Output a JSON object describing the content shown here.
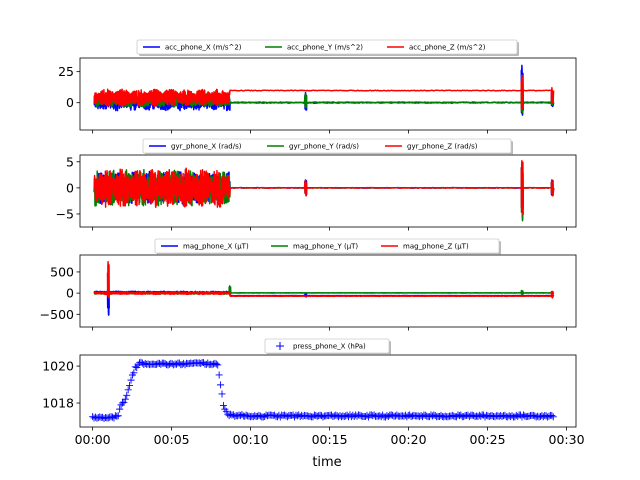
{
  "chart_data": {
    "type": "line",
    "xlabel": "time",
    "x_ticks": [
      "00:00",
      "00:05",
      "00:10",
      "00:15",
      "00:20",
      "00:25",
      "00:30"
    ],
    "x_tick_minutes": [
      0,
      5,
      10,
      15,
      20,
      25,
      30
    ],
    "xlim_minutes": [
      -0.8,
      30.6
    ],
    "legend_position": "top-center, above each panel",
    "grid": false,
    "panels": [
      {
        "id": "acc",
        "ylim": [
          -22,
          36
        ],
        "y_ticks": [
          0,
          25
        ],
        "series": [
          {
            "name": "acc_phone_X (m/s^2)",
            "color": "#0000ff",
            "marker": "line",
            "segments": [
              {
                "x": [
                  0.1,
                  8.7
                ],
                "center": 0,
                "amp": 6.5
              },
              {
                "x": [
                  8.7,
                  29.2
                ],
                "center": 0,
                "amp": 0.3
              }
            ],
            "spikes": [
              {
                "x": 13.5,
                "min": -6,
                "max": 8
              },
              {
                "x": 27.2,
                "min": -10,
                "max": 30
              },
              {
                "x": 29.1,
                "min": -3,
                "max": 8
              }
            ]
          },
          {
            "name": "acc_phone_Y (m/s^2)",
            "color": "#008000",
            "marker": "line",
            "segments": [
              {
                "x": [
                  0.1,
                  8.7
                ],
                "center": 2,
                "amp": 5.5
              },
              {
                "x": [
                  8.7,
                  29.2
                ],
                "center": 0.3,
                "amp": 0.3
              }
            ],
            "spikes": [
              {
                "x": 13.5,
                "min": -4,
                "max": 7
              },
              {
                "x": 27.2,
                "min": -8,
                "max": 22
              },
              {
                "x": 29.1,
                "min": -2,
                "max": 6
              }
            ]
          },
          {
            "name": "acc_phone_Z (m/s^2)",
            "color": "#ff0000",
            "marker": "line",
            "segments": [
              {
                "x": [
                  0.1,
                  8.7
                ],
                "center": 4,
                "amp": 7
              },
              {
                "x": [
                  8.7,
                  29.2
                ],
                "center": 9.8,
                "amp": 0.3
              }
            ],
            "spikes": [
              {
                "x": 27.2,
                "min": -5,
                "max": 22
              },
              {
                "x": 29.1,
                "min": 0,
                "max": 12
              }
            ]
          }
        ]
      },
      {
        "id": "gyr",
        "ylim": [
          -7.5,
          6.3
        ],
        "y_ticks": [
          -5,
          0,
          5
        ],
        "series": [
          {
            "name": "gyr_phone_X (rad/s)",
            "color": "#0000ff",
            "marker": "line",
            "segments": [
              {
                "x": [
                  0.1,
                  8.7
                ],
                "center": 0,
                "amp": 3.2
              },
              {
                "x": [
                  8.7,
                  29.2
                ],
                "center": 0,
                "amp": 0.05
              }
            ],
            "spikes": [
              {
                "x": 13.5,
                "min": -1.5,
                "max": 1.5
              },
              {
                "x": 27.2,
                "min": -4,
                "max": 4
              },
              {
                "x": 29.1,
                "min": -1.5,
                "max": 1.5
              }
            ]
          },
          {
            "name": "gyr_phone_Y (rad/s)",
            "color": "#008000",
            "marker": "line",
            "segments": [
              {
                "x": [
                  0.1,
                  8.7
                ],
                "center": 0,
                "amp": 3.5
              },
              {
                "x": [
                  8.7,
                  29.2
                ],
                "center": 0,
                "amp": 0.05
              }
            ],
            "spikes": [
              {
                "x": 13.5,
                "min": -1,
                "max": 1
              },
              {
                "x": 27.2,
                "min": -6.3,
                "max": 4.5
              },
              {
                "x": 29.1,
                "min": -1,
                "max": 1
              }
            ]
          },
          {
            "name": "gyr_phone_Z (rad/s)",
            "color": "#ff0000",
            "marker": "line",
            "segments": [
              {
                "x": [
                  0.1,
                  8.7
                ],
                "center": 0,
                "amp": 3.8
              },
              {
                "x": [
                  8.7,
                  29.2
                ],
                "center": 0,
                "amp": 0.05
              }
            ],
            "spikes": [
              {
                "x": 13.5,
                "min": -1.5,
                "max": 1.5
              },
              {
                "x": 27.2,
                "min": -5,
                "max": 5.2
              },
              {
                "x": 29.1,
                "min": -1.5,
                "max": 1.5
              }
            ]
          }
        ]
      },
      {
        "id": "mag",
        "ylim": [
          -800,
          900
        ],
        "y_ticks": [
          -500,
          0,
          500
        ],
        "series": [
          {
            "name": "mag_phone_X (µT)",
            "color": "#0000ff",
            "marker": "line",
            "segments": [
              {
                "x": [
                  0.1,
                  8.7
                ],
                "center": 20,
                "amp": 25
              },
              {
                "x": [
                  8.7,
                  29.2
                ],
                "center": -60,
                "amp": 4
              }
            ],
            "spikes": [
              {
                "x": 1.0,
                "min": -520,
                "max": 80
              },
              {
                "x": 13.5,
                "min": -90,
                "max": -30
              }
            ]
          },
          {
            "name": "mag_phone_Y (µT)",
            "color": "#008000",
            "marker": "line",
            "segments": [
              {
                "x": [
                  0.1,
                  8.7
                ],
                "center": 0,
                "amp": 25
              },
              {
                "x": [
                  8.7,
                  29.2
                ],
                "center": 5,
                "amp": 4
              }
            ],
            "spikes": [
              {
                "x": 8.7,
                "min": -20,
                "max": 170
              },
              {
                "x": 27.2,
                "min": -30,
                "max": 60
              }
            ]
          },
          {
            "name": "mag_phone_Z (µT)",
            "color": "#ff0000",
            "marker": "line",
            "segments": [
              {
                "x": [
                  0.1,
                  8.7
                ],
                "center": 0,
                "amp": 30
              },
              {
                "x": [
                  8.7,
                  29.2
                ],
                "center": -70,
                "amp": 5
              }
            ],
            "spikes": [
              {
                "x": 1.0,
                "min": -100,
                "max": 740
              },
              {
                "x": 29.1,
                "min": -110,
                "max": 40
              }
            ]
          }
        ]
      },
      {
        "id": "press",
        "ylim": [
          1016.7,
          1020.6
        ],
        "y_ticks": [
          1018,
          1020
        ],
        "series": [
          {
            "name": "press_phone_X (hPa)",
            "color": "#0000ff",
            "marker": "+",
            "profile": [
              [
                0.0,
                1017.25
              ],
              [
                1.2,
                1017.2
              ],
              [
                1.6,
                1017.3
              ],
              [
                1.8,
                1017.9
              ],
              [
                2.1,
                1018.2
              ],
              [
                2.4,
                1019.2
              ],
              [
                2.7,
                1019.9
              ],
              [
                3.0,
                1020.15
              ],
              [
                5.0,
                1020.1
              ],
              [
                7.0,
                1020.15
              ],
              [
                7.9,
                1020.1
              ],
              [
                8.0,
                1019.6
              ],
              [
                8.3,
                1017.8
              ],
              [
                8.6,
                1017.35
              ],
              [
                10.0,
                1017.3
              ],
              [
                30.0,
                1017.3
              ]
            ]
          }
        ]
      }
    ]
  }
}
